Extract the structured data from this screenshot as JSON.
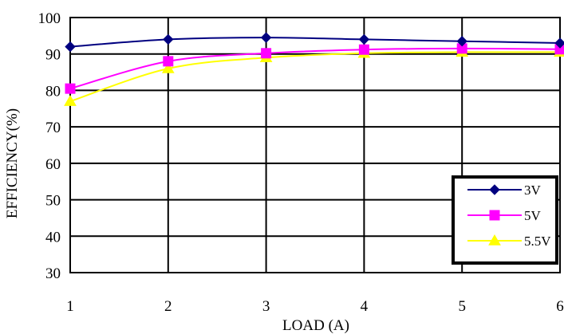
{
  "chart_data": {
    "type": "line",
    "title": "",
    "xlabel": "LOAD (A)",
    "ylabel": "EFFICIENCY(%)",
    "x": [
      1,
      2,
      3,
      4,
      5,
      6
    ],
    "xlim": [
      1,
      6
    ],
    "ylim": [
      30,
      100
    ],
    "xticks": [
      "1",
      "2",
      "3",
      "4",
      "5",
      "6"
    ],
    "yticks": [
      "30",
      "40",
      "50",
      "60",
      "70",
      "80",
      "90",
      "100"
    ],
    "grid": true,
    "legend_position": "bottom-right",
    "series": [
      {
        "name": "3V",
        "color": "#000080",
        "marker": "diamond",
        "values": [
          92.0,
          94.0,
          94.5,
          94.0,
          93.5,
          93.0
        ]
      },
      {
        "name": "5V",
        "color": "#ff00ff",
        "marker": "square",
        "values": [
          80.5,
          88.0,
          90.2,
          91.2,
          91.5,
          91.3
        ]
      },
      {
        "name": "5.5V",
        "color": "#ffff00",
        "marker": "triangle",
        "values": [
          77.0,
          86.0,
          89.0,
          90.2,
          90.5,
          90.5
        ]
      }
    ]
  }
}
